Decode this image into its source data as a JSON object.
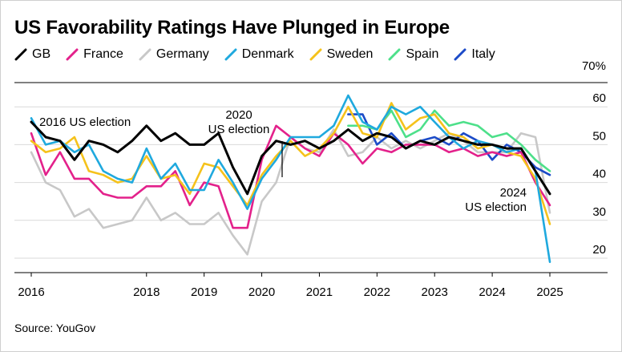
{
  "chart_data": {
    "type": "line",
    "title": "US Favorability Ratings Have Plunged in Europe",
    "xlabel": "",
    "ylabel": "",
    "x_ticks": [
      "2016",
      "2018",
      "2019",
      "2020",
      "2021",
      "2022",
      "2023",
      "2024",
      "2025"
    ],
    "x_range": [
      2016.0,
      2025.0
    ],
    "y_ticks": [
      20,
      30,
      40,
      50,
      60
    ],
    "y_top_label": "70%",
    "ylim": [
      17,
      70
    ],
    "grid": "horizontal",
    "legend_position": "top",
    "series": [
      {
        "name": "GB",
        "color": "#000000",
        "x": [
          2016.0,
          2016.25,
          2016.5,
          2016.75,
          2017.0,
          2017.25,
          2017.5,
          2017.75,
          2018.0,
          2018.25,
          2018.5,
          2018.75,
          2019.0,
          2019.25,
          2019.5,
          2019.75,
          2020.0,
          2020.25,
          2020.5,
          2020.75,
          2021.0,
          2021.25,
          2021.5,
          2021.75,
          2022.0,
          2022.25,
          2022.5,
          2022.75,
          2023.0,
          2023.25,
          2023.5,
          2023.75,
          2024.0,
          2024.25,
          2024.5,
          2024.75,
          2025.0
        ],
        "values": [
          56,
          52,
          51,
          46,
          51,
          50,
          48,
          51,
          55,
          51,
          53,
          50,
          50,
          53,
          44,
          37,
          47,
          51,
          50,
          51,
          49,
          51,
          54,
          51,
          53,
          52,
          49,
          51,
          50,
          52,
          51,
          50,
          50,
          49,
          49,
          43,
          37
        ]
      },
      {
        "name": "France",
        "color": "#e3218b",
        "x": [
          2016.0,
          2016.25,
          2016.5,
          2016.75,
          2017.0,
          2017.25,
          2017.5,
          2017.75,
          2018.0,
          2018.25,
          2018.5,
          2018.75,
          2019.0,
          2019.25,
          2019.5,
          2019.75,
          2020.0,
          2020.25,
          2020.5,
          2020.75,
          2021.0,
          2021.25,
          2021.5,
          2021.75,
          2022.0,
          2022.25,
          2022.5,
          2022.75,
          2023.0,
          2023.25,
          2023.5,
          2023.75,
          2024.0,
          2024.25,
          2024.5,
          2024.75,
          2025.0
        ],
        "values": [
          53,
          42,
          48,
          41,
          41,
          37,
          36,
          36,
          39,
          39,
          43,
          34,
          40,
          39,
          28,
          28,
          46,
          55,
          52,
          49,
          47,
          53,
          50,
          45,
          49,
          48,
          50,
          50,
          50,
          48,
          49,
          47,
          48,
          47,
          48,
          40,
          34
        ]
      },
      {
        "name": "Germany",
        "color": "#c8c8c8",
        "x": [
          2016.0,
          2016.25,
          2016.5,
          2016.75,
          2017.0,
          2017.25,
          2017.5,
          2017.75,
          2018.0,
          2018.25,
          2018.5,
          2018.75,
          2019.0,
          2019.25,
          2019.5,
          2019.75,
          2020.0,
          2020.25,
          2020.5,
          2020.75,
          2021.0,
          2021.25,
          2021.5,
          2021.75,
          2022.0,
          2022.25,
          2022.5,
          2022.75,
          2023.0,
          2023.25,
          2023.5,
          2023.75,
          2024.0,
          2024.25,
          2024.5,
          2024.75,
          2025.0
        ],
        "values": [
          48,
          40,
          38,
          31,
          33,
          28,
          29,
          30,
          36,
          30,
          32,
          29,
          29,
          32,
          26,
          21,
          35,
          40,
          52,
          49,
          48,
          54,
          47,
          48,
          52,
          49,
          51,
          49,
          51,
          53,
          51,
          48,
          48,
          48,
          53,
          52,
          32
        ]
      },
      {
        "name": "Denmark",
        "color": "#1fa9de",
        "x": [
          2016.0,
          2016.25,
          2016.5,
          2016.75,
          2017.0,
          2017.25,
          2017.5,
          2017.75,
          2018.0,
          2018.25,
          2018.5,
          2018.75,
          2019.0,
          2019.25,
          2019.5,
          2019.75,
          2020.0,
          2020.25,
          2020.5,
          2020.75,
          2021.0,
          2021.25,
          2021.5,
          2021.75,
          2022.0,
          2022.25,
          2022.5,
          2022.75,
          2023.0,
          2023.25,
          2023.5,
          2023.75,
          2024.0,
          2024.25,
          2024.5,
          2024.75,
          2025.0
        ],
        "values": [
          57,
          50,
          51,
          48,
          50,
          43,
          41,
          40,
          49,
          41,
          45,
          38,
          38,
          46,
          40,
          33,
          41,
          46,
          52,
          52,
          52,
          55,
          63,
          56,
          54,
          60,
          58,
          60,
          56,
          52,
          49,
          51,
          50,
          48,
          49,
          43,
          19
        ]
      },
      {
        "name": "Sweden",
        "color": "#f5c21b",
        "x": [
          2016.0,
          2016.25,
          2016.5,
          2016.75,
          2017.0,
          2017.25,
          2017.5,
          2017.75,
          2018.0,
          2018.25,
          2018.5,
          2018.75,
          2019.0,
          2019.25,
          2019.5,
          2019.75,
          2020.0,
          2020.25,
          2020.5,
          2020.75,
          2021.0,
          2021.25,
          2021.5,
          2021.75,
          2022.0,
          2022.25,
          2022.5,
          2022.75,
          2023.0,
          2023.25,
          2023.5,
          2023.75,
          2024.0,
          2024.25,
          2024.5,
          2024.75,
          2025.0
        ],
        "values": [
          51,
          48,
          49,
          52,
          43,
          42,
          40,
          41,
          47,
          41,
          42,
          37,
          45,
          44,
          39,
          34,
          42,
          47,
          51,
          47,
          49,
          53,
          60,
          53,
          52,
          61,
          54,
          57,
          58,
          53,
          52,
          49,
          50,
          48,
          47,
          41,
          29
        ]
      },
      {
        "name": "Spain",
        "color": "#4de08a",
        "x": [
          2021.5,
          2021.75,
          2022.0,
          2022.25,
          2022.5,
          2022.75,
          2023.0,
          2023.25,
          2023.5,
          2023.75,
          2024.0,
          2024.25,
          2024.5,
          2024.75,
          2025.0
        ],
        "values": [
          55,
          55,
          54,
          59,
          52,
          54,
          59,
          55,
          56,
          55,
          52,
          53,
          50,
          46,
          43
        ]
      },
      {
        "name": "Italy",
        "color": "#1c4bc8",
        "x": [
          2021.5,
          2021.75,
          2022.0,
          2022.25,
          2022.5,
          2022.75,
          2023.0,
          2023.25,
          2023.5,
          2023.75,
          2024.0,
          2024.25,
          2024.5,
          2024.75,
          2025.0
        ],
        "values": [
          58,
          58,
          50,
          53,
          49,
          51,
          52,
          50,
          53,
          51,
          46,
          50,
          48,
          44,
          42
        ]
      }
    ],
    "annotations": [
      {
        "lines": [
          "2016 US election"
        ],
        "x": 2016.8,
        "y": 51,
        "anchor": "left"
      },
      {
        "lines": [
          "2020",
          "US election"
        ],
        "x": 2020.8,
        "y": 46,
        "anchor": "center"
      },
      {
        "lines": [
          "2024",
          "US election"
        ],
        "x": 2024.75,
        "y": 43,
        "anchor": "right"
      }
    ]
  },
  "source": "Source: YouGov"
}
